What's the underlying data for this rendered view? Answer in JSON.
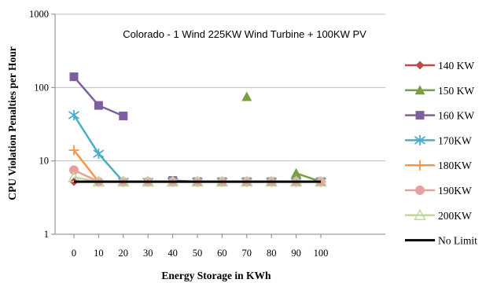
{
  "chart_data": {
    "type": "line",
    "title": "Colorado - 1 Wind 225KW Wind Turbine + 100KW PV",
    "xlabel": "Energy Storage in KWh",
    "ylabel": "CPU Violation Penalties per Hour",
    "yscale": "log",
    "ylim": [
      1,
      1000
    ],
    "yticks": [
      "1",
      "10",
      "100",
      "1000"
    ],
    "xlim": [
      0,
      100
    ],
    "xticks": [
      "0",
      "10",
      "20",
      "30",
      "40",
      "50",
      "60",
      "70",
      "80",
      "90",
      "100"
    ],
    "grid": "horizontal",
    "legend_position": "right",
    "series": [
      {
        "name": "140 KW",
        "color": "#be4b48",
        "marker": "diamond",
        "points": [
          [
            0,
            5.2
          ],
          [
            10,
            5.2
          ],
          [
            20,
            5.2
          ],
          [
            30,
            5.2
          ],
          [
            40,
            5.2
          ],
          [
            50,
            5.2
          ],
          [
            60,
            5.2
          ],
          [
            70,
            5.2
          ],
          [
            80,
            5.2
          ],
          [
            90,
            5.2
          ],
          [
            100,
            5.2
          ]
        ]
      },
      {
        "name": "150 KW",
        "color": "#77a040",
        "marker": "triangle",
        "points": [
          [
            70,
            75
          ]
        ]
      },
      {
        "name": "150 KW tail",
        "legend": false,
        "color": "#77a040",
        "marker": "triangle",
        "points": [
          [
            90,
            6.8
          ],
          [
            100,
            5.2
          ]
        ]
      },
      {
        "name": "160 KW",
        "color": "#7d5fa0",
        "marker": "square",
        "points": [
          [
            0,
            140
          ],
          [
            10,
            57
          ],
          [
            20,
            41
          ]
        ]
      },
      {
        "name": "160 KW tail",
        "legend": false,
        "color": "#7d5fa0",
        "marker": "square",
        "points": [
          [
            40,
            5.4
          ],
          [
            50,
            5.2
          ],
          [
            60,
            5.2
          ],
          [
            70,
            5.2
          ],
          [
            80,
            5.2
          ],
          [
            90,
            5.2
          ],
          [
            100,
            5.2
          ]
        ]
      },
      {
        "name": "170KW",
        "color": "#4bacc6",
        "marker": "asterisk",
        "points": [
          [
            0,
            42
          ],
          [
            10,
            12.5
          ],
          [
            20,
            5.2
          ],
          [
            30,
            5.2
          ],
          [
            40,
            5.2
          ],
          [
            50,
            5.2
          ],
          [
            60,
            5.2
          ],
          [
            70,
            5.2
          ],
          [
            80,
            5.2
          ],
          [
            90,
            5.2
          ],
          [
            100,
            5.2
          ]
        ]
      },
      {
        "name": "180KW",
        "color": "#f79646",
        "marker": "plus",
        "points": [
          [
            0,
            14
          ],
          [
            10,
            5.2
          ],
          [
            20,
            5.2
          ],
          [
            30,
            5.2
          ],
          [
            40,
            5.2
          ],
          [
            50,
            5.2
          ],
          [
            60,
            5.2
          ],
          [
            70,
            5.2
          ],
          [
            80,
            5.2
          ],
          [
            90,
            5.2
          ],
          [
            100,
            5.2
          ]
        ]
      },
      {
        "name": "190KW",
        "color": "#e6a19c",
        "marker": "circle",
        "points": [
          [
            0,
            7.5
          ],
          [
            10,
            5.2
          ],
          [
            20,
            5.2
          ],
          [
            30,
            5.2
          ],
          [
            40,
            5.2
          ],
          [
            50,
            5.2
          ],
          [
            60,
            5.2
          ],
          [
            70,
            5.2
          ],
          [
            80,
            5.2
          ],
          [
            90,
            5.2
          ],
          [
            100,
            5.2
          ]
        ]
      },
      {
        "name": "200KW",
        "color": "#c3d69b",
        "marker": "triangle-open",
        "points": [
          [
            0,
            6
          ],
          [
            10,
            5.2
          ],
          [
            20,
            5.2
          ],
          [
            30,
            5.2
          ],
          [
            40,
            5.2
          ],
          [
            50,
            5.2
          ],
          [
            60,
            5.2
          ],
          [
            70,
            5.2
          ],
          [
            80,
            5.2
          ],
          [
            90,
            5.2
          ],
          [
            100,
            5.2
          ]
        ]
      },
      {
        "name": "No Limit",
        "color": "#000000",
        "marker": "none",
        "line_width": 3,
        "points": [
          [
            0,
            5.2
          ],
          [
            100,
            5.2
          ]
        ]
      }
    ]
  }
}
